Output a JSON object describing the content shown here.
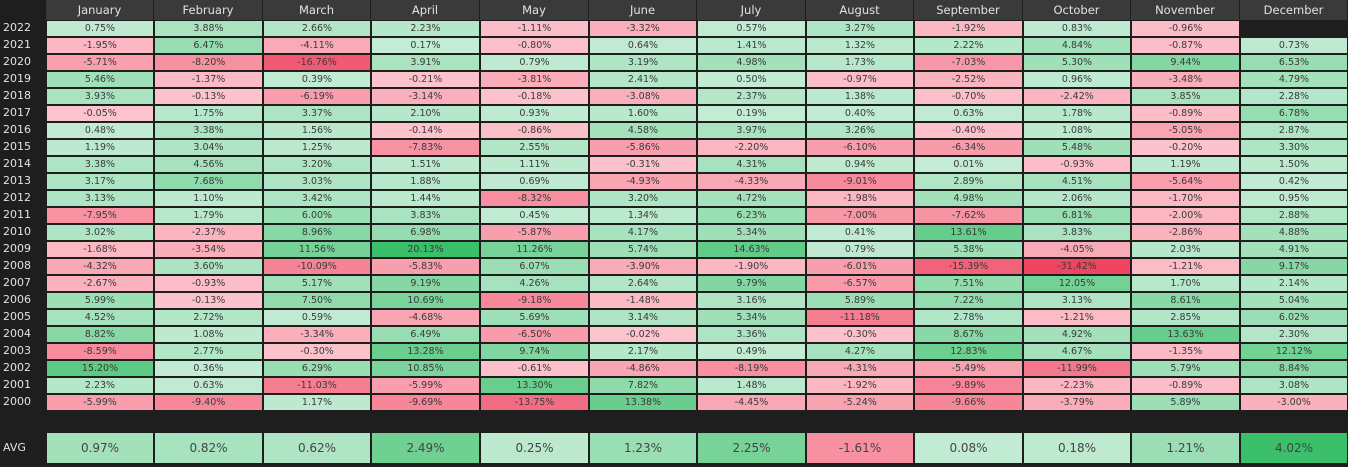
{
  "chart_data": {
    "type": "heatmap",
    "columns": [
      "January",
      "February",
      "March",
      "April",
      "May",
      "June",
      "July",
      "August",
      "September",
      "October",
      "November",
      "December"
    ],
    "rows": [
      {
        "year": "2022",
        "values": [
          0.75,
          3.88,
          2.66,
          2.23,
          -1.11,
          -3.32,
          0.57,
          3.27,
          -1.92,
          0.83,
          -0.96,
          null
        ]
      },
      {
        "year": "2021",
        "values": [
          -1.95,
          6.47,
          -4.11,
          0.17,
          -0.8,
          0.64,
          1.41,
          1.32,
          2.22,
          4.84,
          -0.87,
          0.73
        ]
      },
      {
        "year": "2020",
        "values": [
          -5.71,
          -8.2,
          -16.76,
          3.91,
          0.79,
          3.19,
          4.98,
          1.73,
          -7.03,
          5.3,
          9.44,
          6.53
        ]
      },
      {
        "year": "2019",
        "values": [
          5.46,
          -1.37,
          0.39,
          -0.21,
          -3.81,
          2.41,
          0.5,
          -0.97,
          -2.52,
          0.96,
          -3.48,
          4.79
        ]
      },
      {
        "year": "2018",
        "values": [
          3.93,
          -0.13,
          -6.19,
          -3.14,
          -0.18,
          -3.08,
          2.37,
          1.38,
          -0.7,
          -2.42,
          3.85,
          2.28
        ]
      },
      {
        "year": "2017",
        "values": [
          -0.05,
          1.75,
          3.37,
          2.1,
          0.93,
          1.6,
          0.19,
          0.4,
          0.63,
          1.78,
          -0.89,
          6.78
        ]
      },
      {
        "year": "2016",
        "values": [
          0.48,
          3.38,
          1.56,
          -0.14,
          -0.86,
          4.58,
          3.97,
          3.26,
          -0.4,
          1.08,
          -5.05,
          2.87
        ]
      },
      {
        "year": "2015",
        "values": [
          1.19,
          3.04,
          1.25,
          -7.83,
          2.55,
          -5.86,
          -2.2,
          -6.1,
          -6.34,
          5.48,
          -0.2,
          3.3
        ]
      },
      {
        "year": "2014",
        "values": [
          3.38,
          4.56,
          3.2,
          1.51,
          1.11,
          -0.31,
          4.31,
          0.94,
          0.01,
          -0.93,
          1.19,
          1.5
        ]
      },
      {
        "year": "2013",
        "values": [
          3.17,
          7.68,
          3.03,
          1.88,
          0.69,
          -4.93,
          -4.33,
          -9.01,
          2.89,
          4.51,
          -5.64,
          0.42
        ]
      },
      {
        "year": "2012",
        "values": [
          3.13,
          1.1,
          3.42,
          1.44,
          -8.32,
          3.2,
          4.72,
          -1.98,
          4.98,
          2.06,
          -1.7,
          0.95
        ]
      },
      {
        "year": "2011",
        "values": [
          -7.95,
          1.79,
          6.0,
          3.83,
          0.45,
          1.34,
          6.23,
          -7.0,
          -7.62,
          6.81,
          -2.0,
          2.88
        ]
      },
      {
        "year": "2010",
        "values": [
          3.02,
          -2.37,
          8.96,
          6.98,
          -5.87,
          4.17,
          5.34,
          0.41,
          13.61,
          3.83,
          -2.86,
          4.88
        ]
      },
      {
        "year": "2009",
        "values": [
          -1.68,
          -3.54,
          11.56,
          20.13,
          11.26,
          5.74,
          14.63,
          0.79,
          5.38,
          -4.05,
          2.03,
          4.91
        ]
      },
      {
        "year": "2008",
        "values": [
          -4.32,
          3.6,
          -10.09,
          -5.83,
          6.07,
          -3.9,
          -1.9,
          -6.01,
          -15.39,
          -31.42,
          -1.21,
          9.17
        ]
      },
      {
        "year": "2007",
        "values": [
          -2.67,
          -0.93,
          5.17,
          9.19,
          4.26,
          2.64,
          9.79,
          -6.57,
          7.51,
          12.05,
          1.7,
          2.14
        ]
      },
      {
        "year": "2006",
        "values": [
          5.99,
          -0.13,
          7.5,
          10.69,
          -9.18,
          -1.48,
          3.16,
          5.89,
          7.22,
          3.13,
          8.61,
          5.04
        ]
      },
      {
        "year": "2005",
        "values": [
          4.52,
          2.72,
          0.59,
          -4.68,
          5.69,
          3.14,
          5.34,
          -11.18,
          2.78,
          -1.21,
          2.85,
          6.02
        ]
      },
      {
        "year": "2004",
        "values": [
          8.82,
          1.08,
          -3.34,
          6.49,
          -6.5,
          -0.02,
          3.36,
          -0.3,
          8.67,
          4.92,
          13.63,
          2.3
        ]
      },
      {
        "year": "2003",
        "values": [
          -8.59,
          2.77,
          -0.3,
          13.28,
          9.74,
          2.17,
          0.49,
          4.27,
          12.83,
          4.67,
          -1.35,
          12.12
        ]
      },
      {
        "year": "2002",
        "values": [
          15.2,
          0.36,
          6.29,
          10.85,
          -0.61,
          -4.86,
          -8.19,
          -4.31,
          -5.49,
          -11.99,
          5.79,
          8.84
        ]
      },
      {
        "year": "2001",
        "values": [
          2.23,
          0.63,
          -11.03,
          -5.99,
          13.3,
          7.82,
          1.48,
          -1.92,
          -9.89,
          -2.23,
          -0.89,
          3.08
        ]
      },
      {
        "year": "2000",
        "values": [
          -5.99,
          -9.4,
          1.17,
          -9.69,
          -13.75,
          13.38,
          -4.45,
          -5.24,
          -9.66,
          -3.79,
          5.89,
          -3.0
        ]
      }
    ],
    "avg_label": "AVG",
    "avg": [
      0.97,
      0.82,
      0.62,
      2.49,
      0.25,
      1.23,
      2.25,
      -1.61,
      0.08,
      0.18,
      1.21,
      4.02
    ],
    "value_suffix": "%",
    "colors": {
      "background": "#1e1e1e",
      "header": "#3a3a3a",
      "positive_light": "#c4ecd5",
      "positive_strong": "#3cbf6a",
      "negative_light": "#fcc4cd",
      "negative_strong": "#ef4560"
    }
  }
}
